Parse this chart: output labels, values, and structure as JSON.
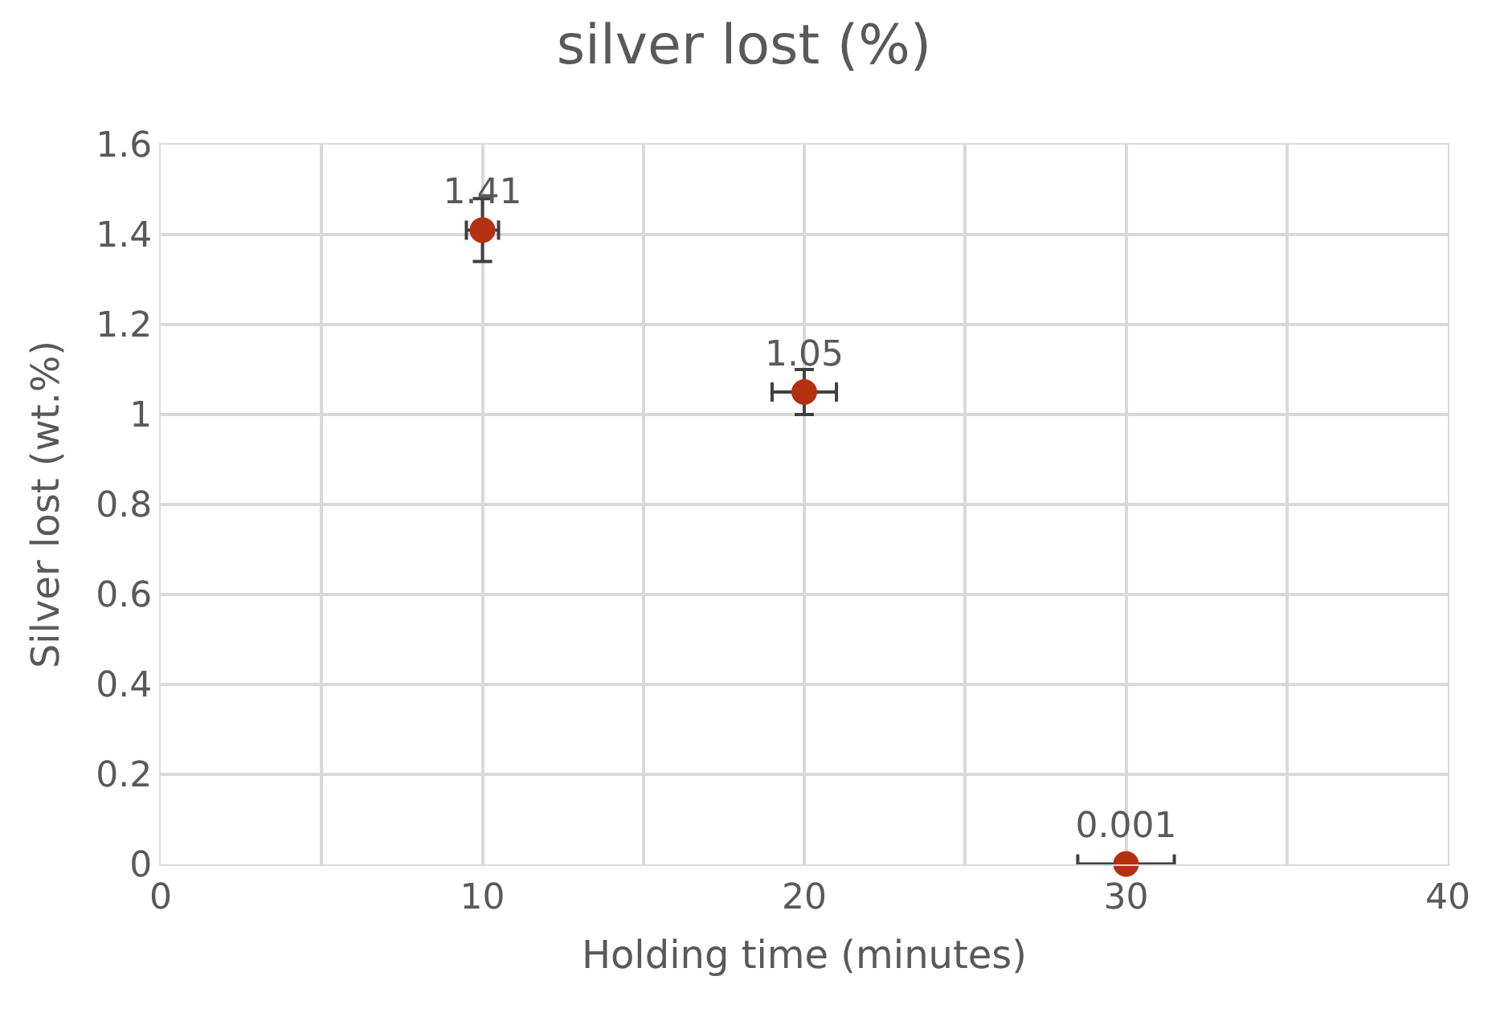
{
  "chart_data": {
    "type": "scatter",
    "title": "silver lost (%)",
    "xlabel": "Holding time (minutes)",
    "ylabel": "Silver lost (wt.%)",
    "x": [
      10,
      20,
      30
    ],
    "series": [
      {
        "color": "#b5300f",
        "values": [
          1.41,
          1.05,
          0.001
        ],
        "errors": [
          0.07,
          0.05,
          null
        ],
        "xerrors": [
          0.5,
          1,
          1.5
        ]
      }
    ],
    "data_labels": true,
    "marker": "circle",
    "grid": true,
    "legend": false,
    "xlim": [
      0,
      40
    ],
    "xticks": [
      0,
      {
        "value": 5,
        "label": null
      },
      10,
      {
        "value": 15,
        "label": null
      },
      20,
      {
        "value": 25,
        "label": null
      },
      30,
      {
        "value": 35,
        "label": null
      },
      40
    ],
    "ylim": [
      0,
      1.6
    ],
    "yticks": [
      0,
      0.2,
      0.4,
      0.6,
      0.8,
      1,
      1.2,
      1.4,
      1.6
    ]
  }
}
